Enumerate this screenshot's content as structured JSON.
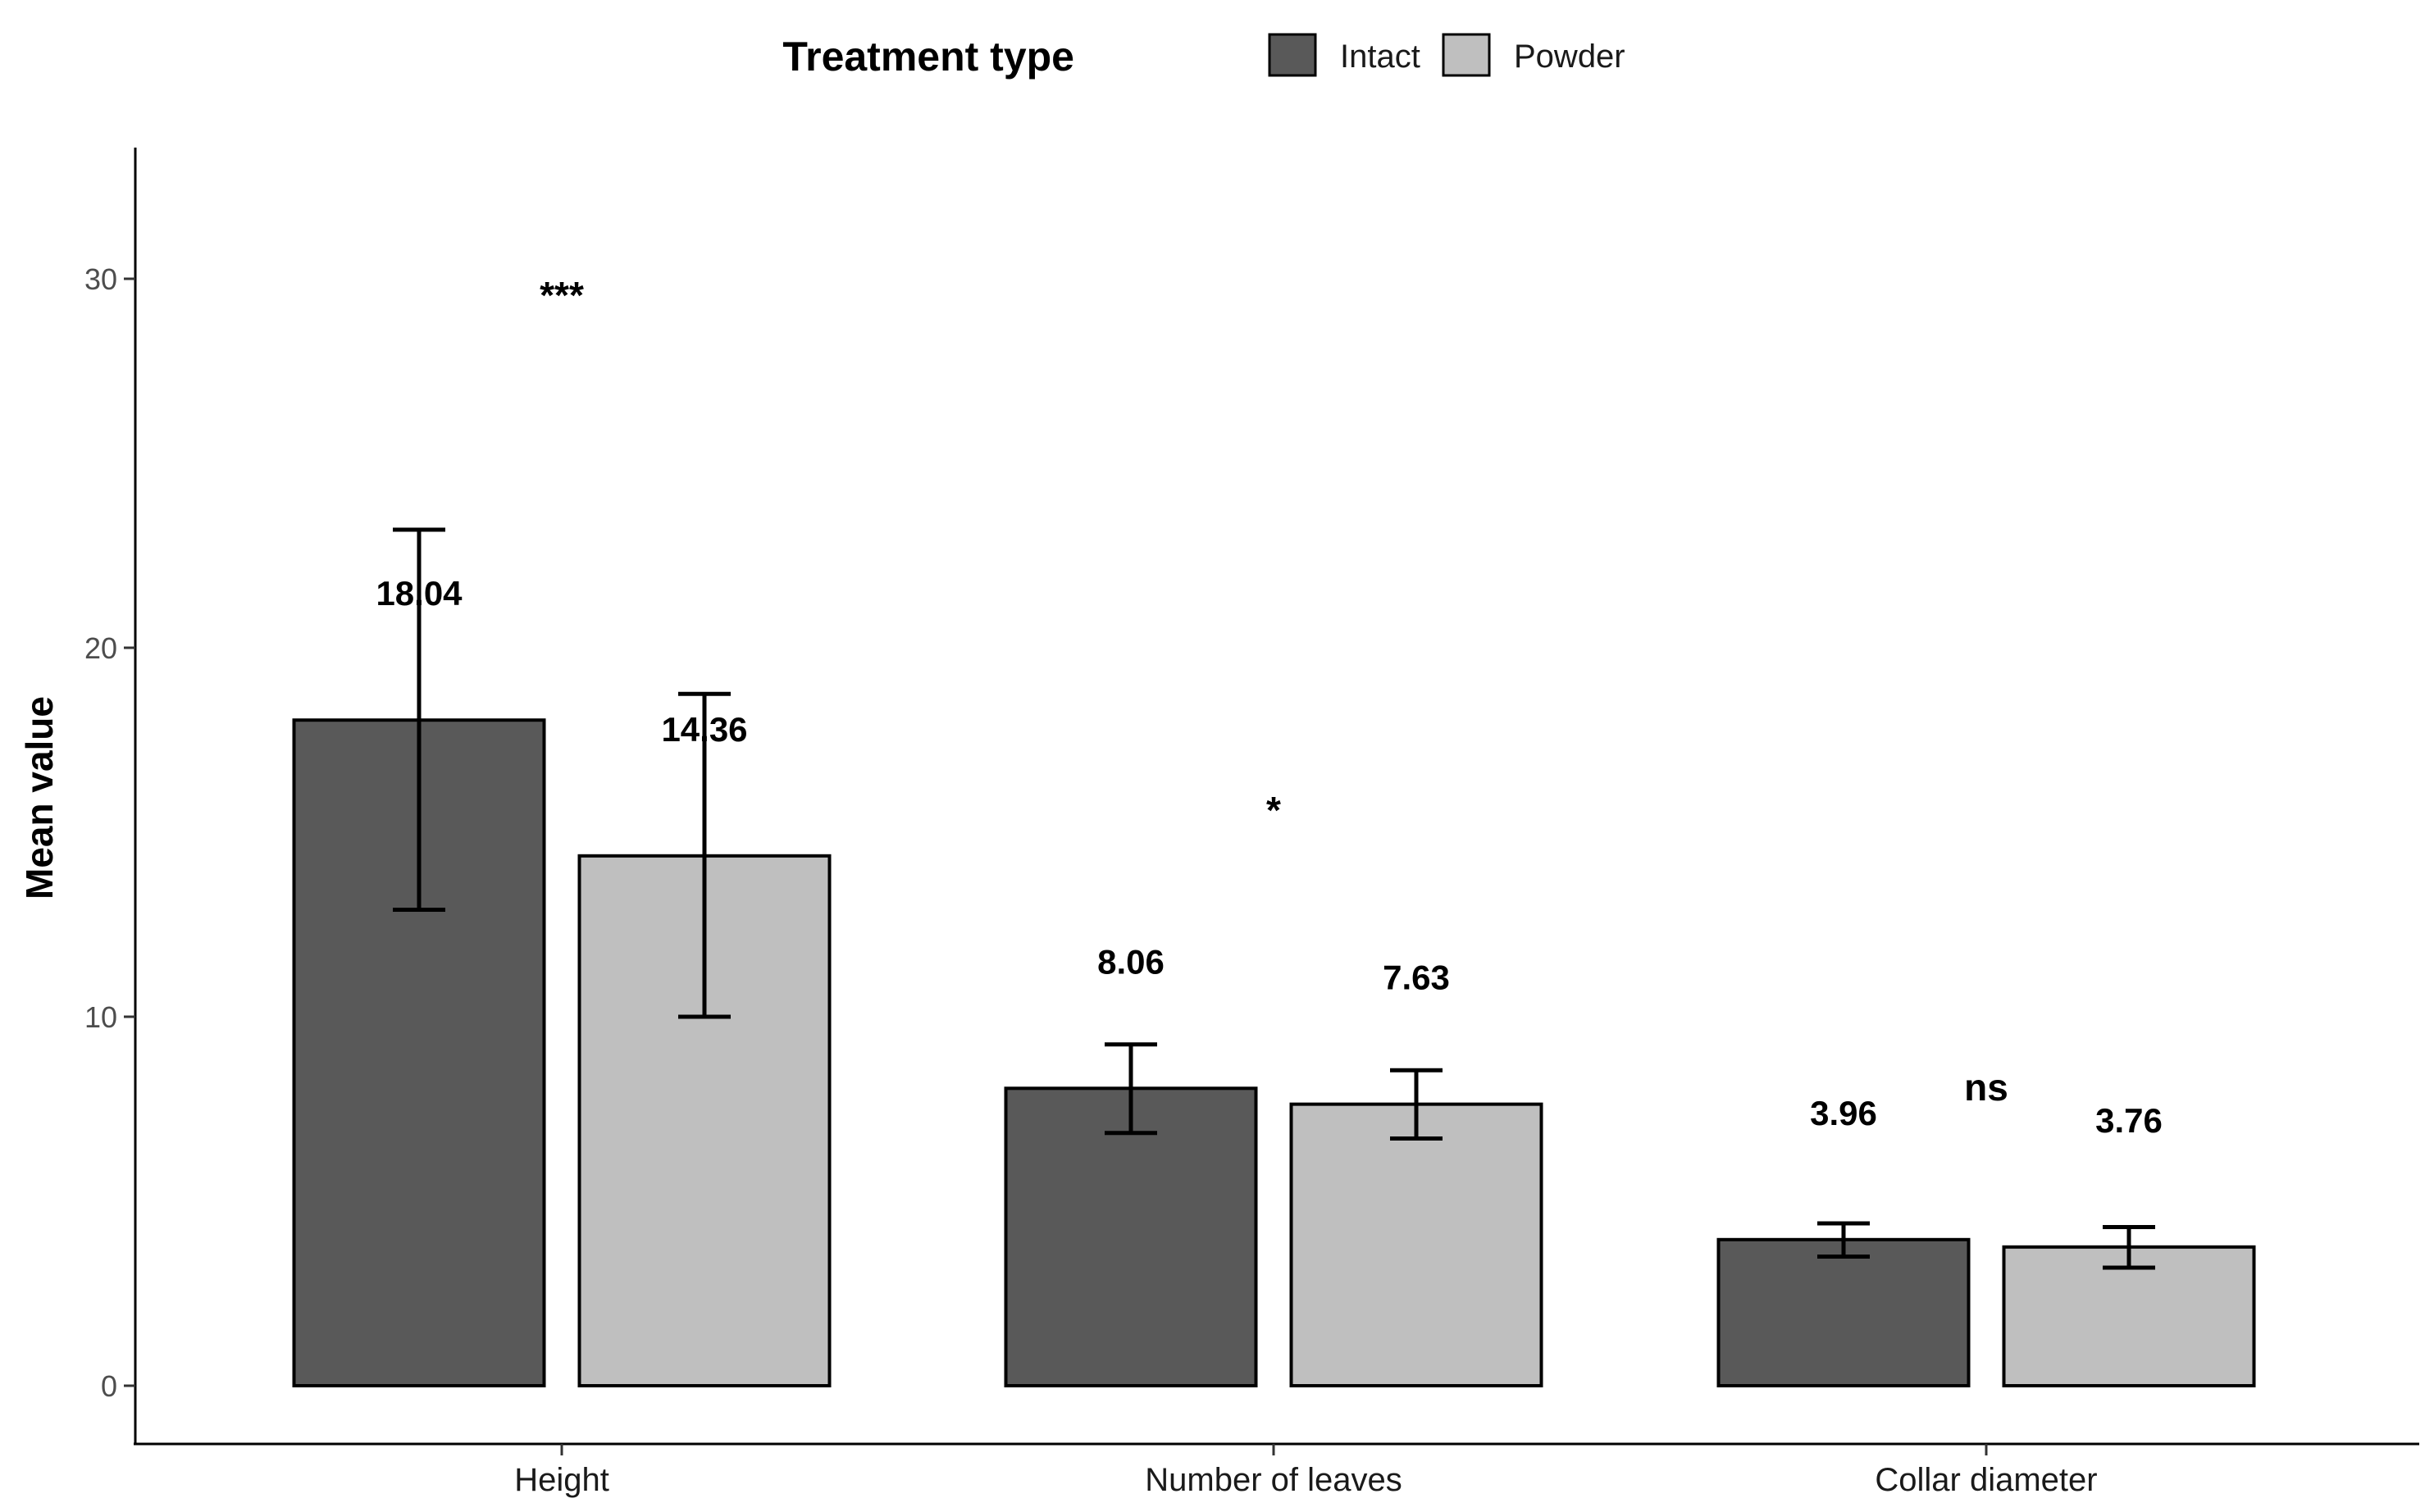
{
  "chart_data": {
    "type": "bar",
    "title": "",
    "xlabel": "",
    "ylabel": "Mean value",
    "ylim": [
      0,
      33
    ],
    "yticks": [
      0,
      10,
      20,
      30
    ],
    "grid": false,
    "legend": {
      "title": "Treatment type",
      "placement": "top-center",
      "entries": [
        {
          "name": "Intact",
          "color": "#595959"
        },
        {
          "name": "Powder",
          "color": "#bfbfbf"
        }
      ]
    },
    "categories": [
      "Height",
      "Number of leaves",
      "Collar diameter"
    ],
    "series": [
      {
        "name": "Intact",
        "color": "#595959",
        "values": [
          18.04,
          8.06,
          3.96
        ],
        "error_low": [
          12.9,
          6.85,
          3.5
        ],
        "error_high": [
          23.2,
          9.25,
          4.4
        ],
        "labels": [
          "18.04",
          "8.06",
          "3.96"
        ]
      },
      {
        "name": "Powder",
        "color": "#bfbfbf",
        "values": [
          14.36,
          7.63,
          3.76
        ],
        "error_low": [
          10.0,
          6.7,
          3.2
        ],
        "error_high": [
          18.75,
          8.55,
          4.3
        ],
        "labels": [
          "14.36",
          "7.63",
          "3.76"
        ]
      }
    ],
    "significance": [
      "***",
      "*",
      "ns"
    ]
  }
}
